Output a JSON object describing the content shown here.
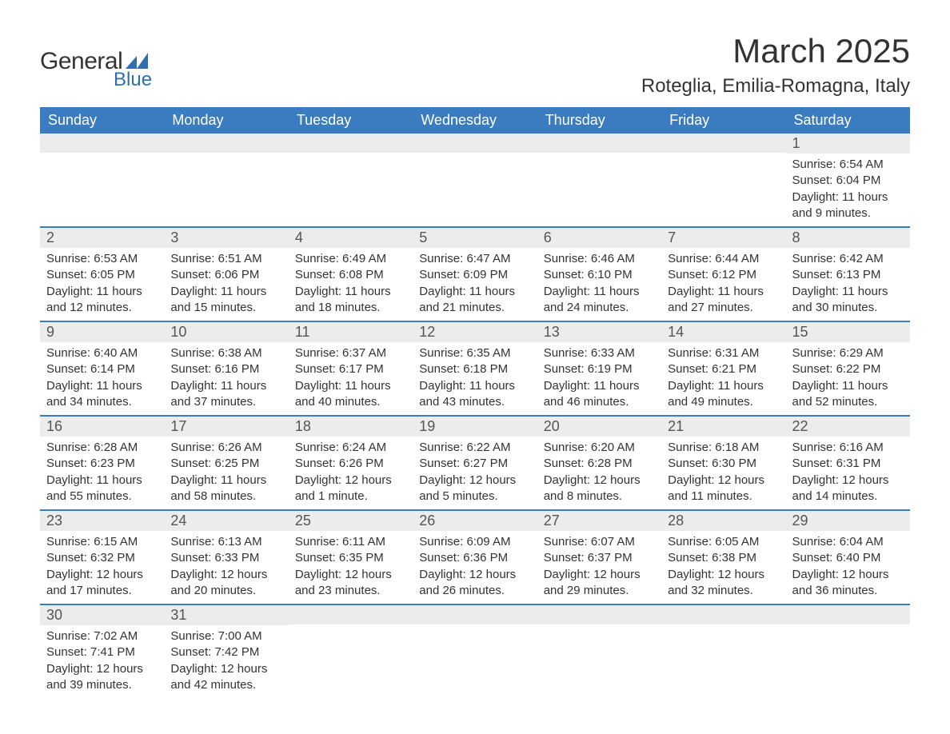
{
  "logo": {
    "text_main": "General",
    "text_sub": "Blue",
    "shape_color": "#2f6fae",
    "main_color": "#333333",
    "sub_color": "#2f6fae"
  },
  "title": {
    "month": "March 2025",
    "location": "Roteglia, Emilia-Romagna, Italy",
    "month_fontsize": 42,
    "location_fontsize": 24,
    "text_color": "#333333"
  },
  "calendar": {
    "header_bg": "#3b7bbf",
    "header_text_color": "#ffffff",
    "daynum_bg": "#ececec",
    "daynum_color": "#555555",
    "cell_text_color": "#333333",
    "week_border_color": "#3b7bbf",
    "background_color": "#ffffff",
    "day_names": [
      "Sunday",
      "Monday",
      "Tuesday",
      "Wednesday",
      "Thursday",
      "Friday",
      "Saturday"
    ],
    "weeks": [
      [
        {
          "day": "",
          "sunrise": "",
          "sunset": "",
          "daylight": "",
          "empty": true
        },
        {
          "day": "",
          "sunrise": "",
          "sunset": "",
          "daylight": "",
          "empty": true
        },
        {
          "day": "",
          "sunrise": "",
          "sunset": "",
          "daylight": "",
          "empty": true
        },
        {
          "day": "",
          "sunrise": "",
          "sunset": "",
          "daylight": "",
          "empty": true
        },
        {
          "day": "",
          "sunrise": "",
          "sunset": "",
          "daylight": "",
          "empty": true
        },
        {
          "day": "",
          "sunrise": "",
          "sunset": "",
          "daylight": "",
          "empty": true
        },
        {
          "day": "1",
          "sunrise": "Sunrise: 6:54 AM",
          "sunset": "Sunset: 6:04 PM",
          "daylight": "Daylight: 11 hours and 9 minutes.",
          "empty": false
        }
      ],
      [
        {
          "day": "2",
          "sunrise": "Sunrise: 6:53 AM",
          "sunset": "Sunset: 6:05 PM",
          "daylight": "Daylight: 11 hours and 12 minutes.",
          "empty": false
        },
        {
          "day": "3",
          "sunrise": "Sunrise: 6:51 AM",
          "sunset": "Sunset: 6:06 PM",
          "daylight": "Daylight: 11 hours and 15 minutes.",
          "empty": false
        },
        {
          "day": "4",
          "sunrise": "Sunrise: 6:49 AM",
          "sunset": "Sunset: 6:08 PM",
          "daylight": "Daylight: 11 hours and 18 minutes.",
          "empty": false
        },
        {
          "day": "5",
          "sunrise": "Sunrise: 6:47 AM",
          "sunset": "Sunset: 6:09 PM",
          "daylight": "Daylight: 11 hours and 21 minutes.",
          "empty": false
        },
        {
          "day": "6",
          "sunrise": "Sunrise: 6:46 AM",
          "sunset": "Sunset: 6:10 PM",
          "daylight": "Daylight: 11 hours and 24 minutes.",
          "empty": false
        },
        {
          "day": "7",
          "sunrise": "Sunrise: 6:44 AM",
          "sunset": "Sunset: 6:12 PM",
          "daylight": "Daylight: 11 hours and 27 minutes.",
          "empty": false
        },
        {
          "day": "8",
          "sunrise": "Sunrise: 6:42 AM",
          "sunset": "Sunset: 6:13 PM",
          "daylight": "Daylight: 11 hours and 30 minutes.",
          "empty": false
        }
      ],
      [
        {
          "day": "9",
          "sunrise": "Sunrise: 6:40 AM",
          "sunset": "Sunset: 6:14 PM",
          "daylight": "Daylight: 11 hours and 34 minutes.",
          "empty": false
        },
        {
          "day": "10",
          "sunrise": "Sunrise: 6:38 AM",
          "sunset": "Sunset: 6:16 PM",
          "daylight": "Daylight: 11 hours and 37 minutes.",
          "empty": false
        },
        {
          "day": "11",
          "sunrise": "Sunrise: 6:37 AM",
          "sunset": "Sunset: 6:17 PM",
          "daylight": "Daylight: 11 hours and 40 minutes.",
          "empty": false
        },
        {
          "day": "12",
          "sunrise": "Sunrise: 6:35 AM",
          "sunset": "Sunset: 6:18 PM",
          "daylight": "Daylight: 11 hours and 43 minutes.",
          "empty": false
        },
        {
          "day": "13",
          "sunrise": "Sunrise: 6:33 AM",
          "sunset": "Sunset: 6:19 PM",
          "daylight": "Daylight: 11 hours and 46 minutes.",
          "empty": false
        },
        {
          "day": "14",
          "sunrise": "Sunrise: 6:31 AM",
          "sunset": "Sunset: 6:21 PM",
          "daylight": "Daylight: 11 hours and 49 minutes.",
          "empty": false
        },
        {
          "day": "15",
          "sunrise": "Sunrise: 6:29 AM",
          "sunset": "Sunset: 6:22 PM",
          "daylight": "Daylight: 11 hours and 52 minutes.",
          "empty": false
        }
      ],
      [
        {
          "day": "16",
          "sunrise": "Sunrise: 6:28 AM",
          "sunset": "Sunset: 6:23 PM",
          "daylight": "Daylight: 11 hours and 55 minutes.",
          "empty": false
        },
        {
          "day": "17",
          "sunrise": "Sunrise: 6:26 AM",
          "sunset": "Sunset: 6:25 PM",
          "daylight": "Daylight: 11 hours and 58 minutes.",
          "empty": false
        },
        {
          "day": "18",
          "sunrise": "Sunrise: 6:24 AM",
          "sunset": "Sunset: 6:26 PM",
          "daylight": "Daylight: 12 hours and 1 minute.",
          "empty": false
        },
        {
          "day": "19",
          "sunrise": "Sunrise: 6:22 AM",
          "sunset": "Sunset: 6:27 PM",
          "daylight": "Daylight: 12 hours and 5 minutes.",
          "empty": false
        },
        {
          "day": "20",
          "sunrise": "Sunrise: 6:20 AM",
          "sunset": "Sunset: 6:28 PM",
          "daylight": "Daylight: 12 hours and 8 minutes.",
          "empty": false
        },
        {
          "day": "21",
          "sunrise": "Sunrise: 6:18 AM",
          "sunset": "Sunset: 6:30 PM",
          "daylight": "Daylight: 12 hours and 11 minutes.",
          "empty": false
        },
        {
          "day": "22",
          "sunrise": "Sunrise: 6:16 AM",
          "sunset": "Sunset: 6:31 PM",
          "daylight": "Daylight: 12 hours and 14 minutes.",
          "empty": false
        }
      ],
      [
        {
          "day": "23",
          "sunrise": "Sunrise: 6:15 AM",
          "sunset": "Sunset: 6:32 PM",
          "daylight": "Daylight: 12 hours and 17 minutes.",
          "empty": false
        },
        {
          "day": "24",
          "sunrise": "Sunrise: 6:13 AM",
          "sunset": "Sunset: 6:33 PM",
          "daylight": "Daylight: 12 hours and 20 minutes.",
          "empty": false
        },
        {
          "day": "25",
          "sunrise": "Sunrise: 6:11 AM",
          "sunset": "Sunset: 6:35 PM",
          "daylight": "Daylight: 12 hours and 23 minutes.",
          "empty": false
        },
        {
          "day": "26",
          "sunrise": "Sunrise: 6:09 AM",
          "sunset": "Sunset: 6:36 PM",
          "daylight": "Daylight: 12 hours and 26 minutes.",
          "empty": false
        },
        {
          "day": "27",
          "sunrise": "Sunrise: 6:07 AM",
          "sunset": "Sunset: 6:37 PM",
          "daylight": "Daylight: 12 hours and 29 minutes.",
          "empty": false
        },
        {
          "day": "28",
          "sunrise": "Sunrise: 6:05 AM",
          "sunset": "Sunset: 6:38 PM",
          "daylight": "Daylight: 12 hours and 32 minutes.",
          "empty": false
        },
        {
          "day": "29",
          "sunrise": "Sunrise: 6:04 AM",
          "sunset": "Sunset: 6:40 PM",
          "daylight": "Daylight: 12 hours and 36 minutes.",
          "empty": false
        }
      ],
      [
        {
          "day": "30",
          "sunrise": "Sunrise: 7:02 AM",
          "sunset": "Sunset: 7:41 PM",
          "daylight": "Daylight: 12 hours and 39 minutes.",
          "empty": false
        },
        {
          "day": "31",
          "sunrise": "Sunrise: 7:00 AM",
          "sunset": "Sunset: 7:42 PM",
          "daylight": "Daylight: 12 hours and 42 minutes.",
          "empty": false
        },
        {
          "day": "",
          "sunrise": "",
          "sunset": "",
          "daylight": "",
          "empty": true
        },
        {
          "day": "",
          "sunrise": "",
          "sunset": "",
          "daylight": "",
          "empty": true
        },
        {
          "day": "",
          "sunrise": "",
          "sunset": "",
          "daylight": "",
          "empty": true
        },
        {
          "day": "",
          "sunrise": "",
          "sunset": "",
          "daylight": "",
          "empty": true
        },
        {
          "day": "",
          "sunrise": "",
          "sunset": "",
          "daylight": "",
          "empty": true
        }
      ]
    ]
  }
}
